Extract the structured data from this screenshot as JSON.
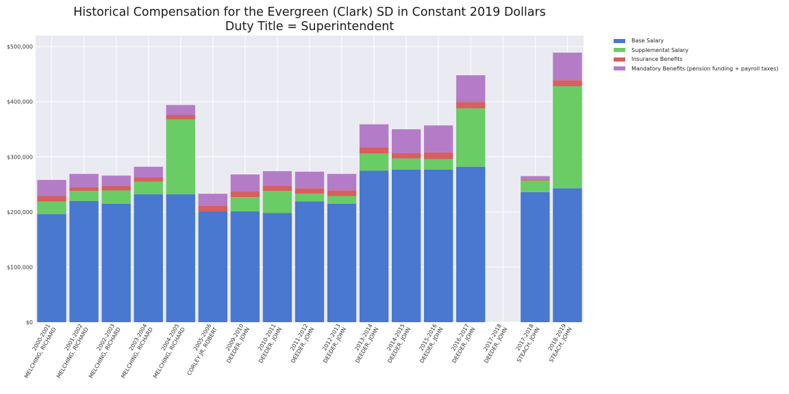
{
  "title_line1": "Historical Compensation for the Evergreen (Clark) SD in Constant 2019 Dollars",
  "title_line2": "Duty Title = Superintendent",
  "colors": {
    "base": "#4878cf",
    "supplemental": "#6acc65",
    "insurance": "#d65f5f",
    "mandatory": "#b47cc7",
    "plot_bg": "#eaeaf2",
    "grid": "#ffffff"
  },
  "chart_data": {
    "type": "bar",
    "stacked": true,
    "title": "Historical Compensation for the Evergreen (Clark) SD in Constant 2019 Dollars\nDuty Title = Superintendent",
    "xlabel": "",
    "ylabel": "",
    "ylim": [
      0,
      520000
    ],
    "yticks": [
      0,
      100000,
      200000,
      300000,
      400000,
      500000
    ],
    "ytick_labels": [
      "$0",
      "$100,000",
      "$200,000",
      "$300,000",
      "$400,000",
      "$500,000"
    ],
    "grid": true,
    "legend_position": "outside-top-right",
    "categories": [
      [
        "2000-2001",
        "MELCHING, RICHARD"
      ],
      [
        "2001-2002",
        "MELCHING, RICHARD"
      ],
      [
        "2002-2003",
        "MELCHING, RICHARD"
      ],
      [
        "2003-2004",
        "MELCHING, RICHARD"
      ],
      [
        "2004-2005",
        "MELCHING, RICHARD"
      ],
      [
        "2005-2006",
        "CORLEY JR, ROBERT"
      ],
      [
        "2009-2010",
        "DEEDER, JOHN"
      ],
      [
        "2010-2011",
        "DEEDER, JOHN"
      ],
      [
        "2011-2012",
        "DEEDER, JOHN"
      ],
      [
        "2012-2013",
        "DEEDER, JOHN"
      ],
      [
        "2013-2014",
        "DEEDER, JOHN"
      ],
      [
        "2014-2015",
        "DEEDER, JOHN"
      ],
      [
        "2015-2016",
        "DEEDER, JOHN"
      ],
      [
        "2016-2017",
        "DEEDER, JOHN"
      ],
      [
        "2017-2018",
        "DEEDER, JOHN"
      ],
      [
        "2017-2018",
        "STEACH, JOHN"
      ],
      [
        "2018-2019",
        "STEACH, JOHN"
      ]
    ],
    "series": [
      {
        "name": "Base Salary",
        "values": [
          196000,
          220000,
          215000,
          232000,
          232000,
          201000,
          201000,
          198000,
          219000,
          215000,
          275000,
          277000,
          277000,
          282000,
          0,
          236000,
          243000
        ]
      },
      {
        "name": "Supplemental Salary",
        "values": [
          23000,
          18000,
          24000,
          23000,
          136000,
          0,
          26000,
          40000,
          14000,
          14000,
          31000,
          20000,
          19000,
          106000,
          0,
          21000,
          185000
        ]
      },
      {
        "name": "Insurance Benefits",
        "values": [
          10000,
          7000,
          8000,
          8000,
          8000,
          10000,
          10000,
          10000,
          10000,
          10000,
          11000,
          10000,
          12000,
          11000,
          0,
          2000,
          11000
        ]
      },
      {
        "name": "Mandatory Benefits (pension funding + payroll taxes)",
        "values": [
          29000,
          24000,
          19000,
          19000,
          18000,
          22000,
          31000,
          26000,
          30000,
          30000,
          42000,
          43000,
          49000,
          49000,
          0,
          6000,
          50000
        ]
      }
    ]
  }
}
